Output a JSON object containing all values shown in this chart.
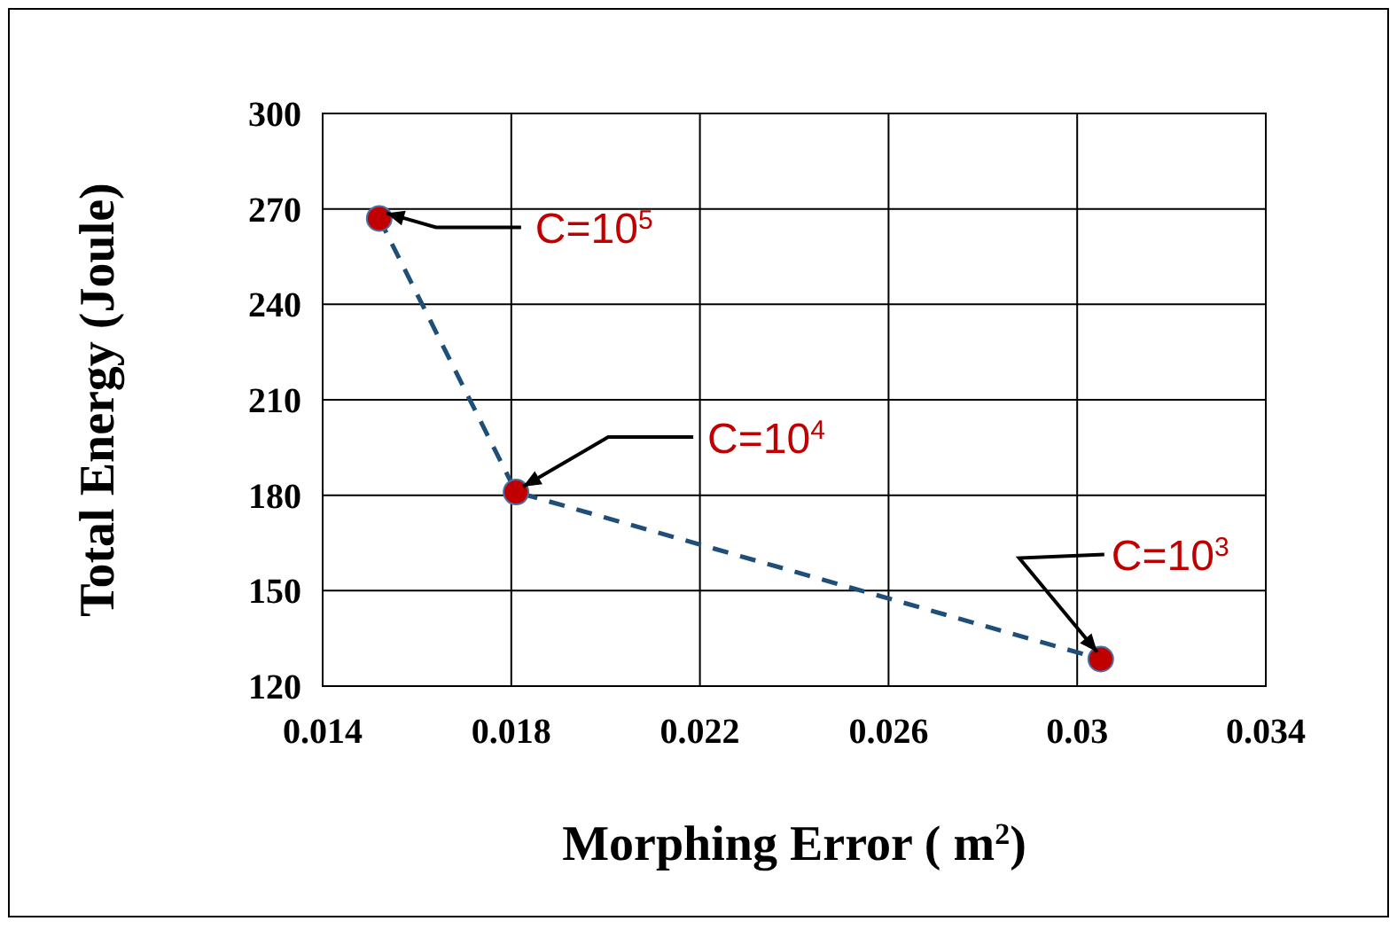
{
  "chart_data": {
    "type": "line",
    "xlabel": "Morphing Error ( m$^{2}$)",
    "ylabel": "Total Energy (Joule)",
    "x": [
      0.0152,
      0.0181,
      0.0305
    ],
    "series": [
      {
        "color": "#1f4e79",
        "values": [
          267,
          181,
          128.5
        ]
      },
      {
        "type": "scatter",
        "color": "#c00000",
        "values": [
          267,
          181,
          128.5
        ]
      }
    ],
    "line_style": "dashed",
    "grid": true,
    "xlim": [
      0.014,
      0.034
    ],
    "xticks": [
      0.014,
      0.018,
      0.022,
      0.026,
      0.03,
      0.034
    ],
    "ylim": [
      120,
      300
    ],
    "yticks": [
      120,
      150,
      180,
      210,
      240,
      270,
      300
    ],
    "annotations": [
      {
        "text": "C=10$^{5}$",
        "x": 0.0152,
        "y": 267
      },
      {
        "text": "C=10$^{4}$",
        "x": 0.0181,
        "y": 181
      },
      {
        "text": "C=10$^{3}$",
        "x": 0.0305,
        "y": 128.5
      }
    ]
  }
}
